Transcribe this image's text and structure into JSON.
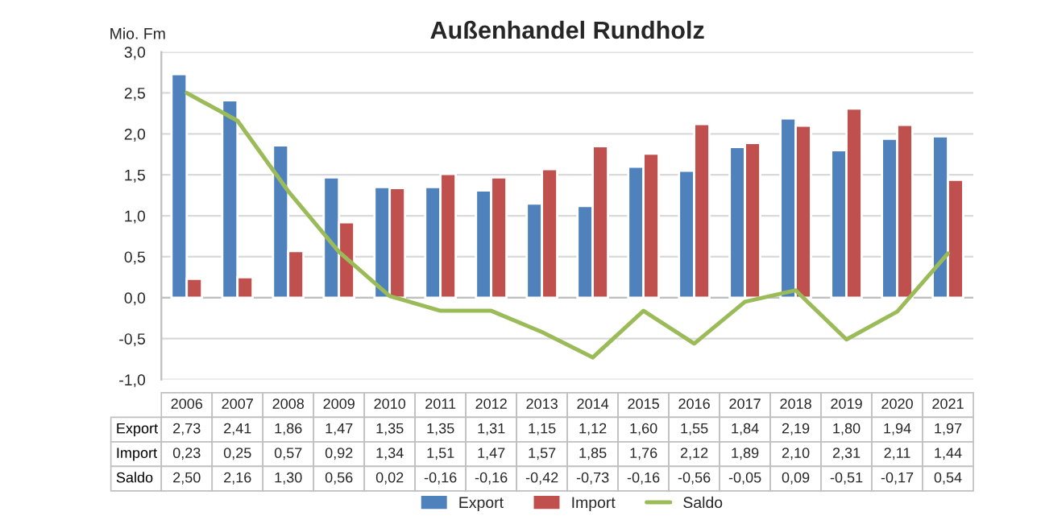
{
  "chart_data": {
    "type": "bar",
    "title": "Außenhandel Rundholz",
    "ylabel": "Mio. Fm",
    "categories": [
      "2006",
      "2007",
      "2008",
      "2009",
      "2010",
      "2011",
      "2012",
      "2013",
      "2014",
      "2015",
      "2016",
      "2017",
      "2018",
      "2019",
      "2020",
      "2021"
    ],
    "series": [
      {
        "name": "Export",
        "color": "#4f81bd",
        "values": [
          2.73,
          2.41,
          1.86,
          1.47,
          1.35,
          1.35,
          1.31,
          1.15,
          1.12,
          1.6,
          1.55,
          1.84,
          2.19,
          1.8,
          1.94,
          1.97
        ],
        "value_labels": [
          "2,73",
          "2,41",
          "1,86",
          "1,47",
          "1,35",
          "1,35",
          "1,31",
          "1,15",
          "1,12",
          "1,60",
          "1,55",
          "1,84",
          "2,19",
          "1,80",
          "1,94",
          "1,97"
        ]
      },
      {
        "name": "Import",
        "color": "#c0504d",
        "values": [
          0.23,
          0.25,
          0.57,
          0.92,
          1.34,
          1.51,
          1.47,
          1.57,
          1.85,
          1.76,
          2.12,
          1.89,
          2.1,
          2.31,
          2.11,
          1.44
        ],
        "value_labels": [
          "0,23",
          "0,25",
          "0,57",
          "0,92",
          "1,34",
          "1,51",
          "1,47",
          "1,57",
          "1,85",
          "1,76",
          "2,12",
          "1,89",
          "2,10",
          "2,31",
          "2,11",
          "1,44"
        ]
      },
      {
        "name": "Saldo",
        "type": "line",
        "color": "#9bbb59",
        "values": [
          2.5,
          2.16,
          1.3,
          0.56,
          0.02,
          -0.16,
          -0.16,
          -0.42,
          -0.73,
          -0.16,
          -0.56,
          -0.05,
          0.09,
          -0.51,
          -0.17,
          0.54
        ],
        "value_labels": [
          "2,50",
          "2,16",
          "1,30",
          "0,56",
          "0,02",
          "-0,16",
          "-0,16",
          "-0,42",
          "-0,73",
          "-0,16",
          "-0,56",
          "-0,05",
          "0,09",
          "-0,51",
          "-0,17",
          "0,54"
        ]
      }
    ],
    "ylim": [
      -1,
      3
    ],
    "yticks": [
      {
        "value": -1,
        "label": "-1,0"
      },
      {
        "value": -0.5,
        "label": "-0,5"
      },
      {
        "value": 0,
        "label": "0,0"
      },
      {
        "value": 0.5,
        "label": "0,5"
      },
      {
        "value": 1,
        "label": "1,0"
      },
      {
        "value": 1.5,
        "label": "1,5"
      },
      {
        "value": 2,
        "label": "2,0"
      },
      {
        "value": 2.5,
        "label": "2,5"
      },
      {
        "value": 3,
        "label": "3,0"
      }
    ],
    "grid": "y",
    "legend": "bottom",
    "marker": "none",
    "line_style": "solid"
  }
}
